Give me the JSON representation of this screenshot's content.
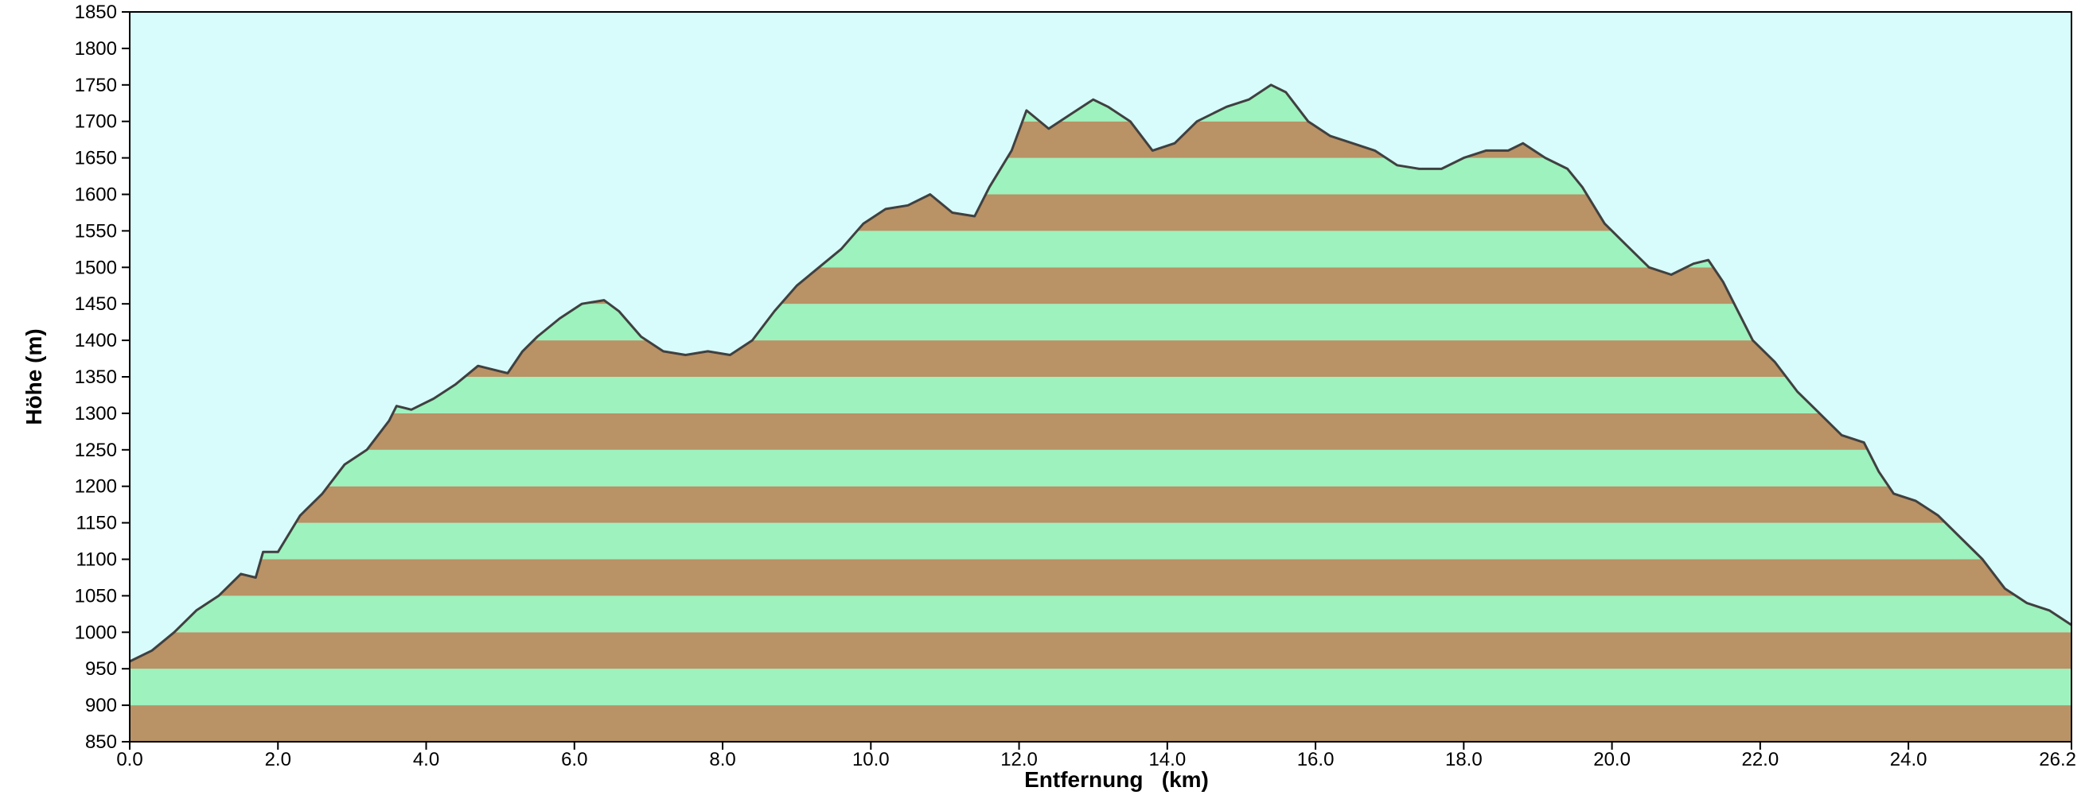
{
  "chart_data": {
    "type": "area",
    "xlabel": "Entfernung   (km)",
    "ylabel": "Höhe (m)",
    "xlim": [
      0,
      26.2
    ],
    "ylim": [
      850,
      1850
    ],
    "x_ticks": [
      "0.0",
      "2.0",
      "4.0",
      "6.0",
      "8.0",
      "10.0",
      "12.0",
      "14.0",
      "16.0",
      "18.0",
      "20.0",
      "22.0",
      "24.0",
      "26.2"
    ],
    "y_ticks": [
      "850",
      "900",
      "950",
      "1000",
      "1050",
      "1100",
      "1150",
      "1200",
      "1250",
      "1300",
      "1350",
      "1400",
      "1450",
      "1500",
      "1550",
      "1600",
      "1650",
      "1700",
      "1750",
      "1800",
      "1850"
    ],
    "grid": false,
    "legend": "none",
    "band_step": 50,
    "colors": {
      "background": "#d8fcfc",
      "band_even": "#b99265",
      "band_odd": "#9df2be",
      "line": "#404040",
      "axis": "#000000"
    },
    "series": [
      {
        "x": [
          0.0,
          0.3,
          0.6,
          0.9,
          1.2,
          1.5,
          1.7,
          1.8,
          2.0,
          2.3,
          2.6,
          2.9,
          3.2,
          3.5,
          3.6,
          3.8,
          4.1,
          4.4,
          4.7,
          4.9,
          5.1,
          5.3,
          5.5,
          5.8,
          6.1,
          6.4,
          6.6,
          6.9,
          7.2,
          7.5,
          7.8,
          8.1,
          8.4,
          8.7,
          9.0,
          9.3,
          9.6,
          9.9,
          10.2,
          10.5,
          10.8,
          11.1,
          11.4,
          11.6,
          11.9,
          12.1,
          12.4,
          12.7,
          13.0,
          13.2,
          13.5,
          13.8,
          14.1,
          14.4,
          14.8,
          15.1,
          15.4,
          15.6,
          15.9,
          16.2,
          16.5,
          16.8,
          17.1,
          17.4,
          17.7,
          18.0,
          18.3,
          18.6,
          18.8,
          19.1,
          19.4,
          19.6,
          19.9,
          20.2,
          20.5,
          20.8,
          21.1,
          21.3,
          21.5,
          21.7,
          21.9,
          22.2,
          22.5,
          22.8,
          23.1,
          23.4,
          23.6,
          23.8,
          24.1,
          24.4,
          24.7,
          25.0,
          25.3,
          25.6,
          25.9,
          26.2
        ],
        "y": [
          960,
          975,
          1000,
          1030,
          1050,
          1080,
          1075,
          1110,
          1110,
          1160,
          1190,
          1230,
          1250,
          1290,
          1310,
          1305,
          1320,
          1340,
          1365,
          1360,
          1355,
          1385,
          1405,
          1430,
          1450,
          1455,
          1440,
          1405,
          1385,
          1380,
          1385,
          1380,
          1400,
          1440,
          1475,
          1500,
          1525,
          1560,
          1580,
          1585,
          1600,
          1575,
          1570,
          1610,
          1660,
          1715,
          1690,
          1710,
          1730,
          1720,
          1700,
          1660,
          1670,
          1700,
          1720,
          1730,
          1750,
          1740,
          1700,
          1680,
          1670,
          1660,
          1640,
          1635,
          1635,
          1650,
          1660,
          1660,
          1670,
          1650,
          1635,
          1610,
          1560,
          1530,
          1500,
          1490,
          1505,
          1510,
          1480,
          1440,
          1400,
          1370,
          1330,
          1300,
          1270,
          1260,
          1220,
          1190,
          1180,
          1160,
          1130,
          1100,
          1060,
          1040,
          1030,
          1010
        ]
      }
    ]
  }
}
